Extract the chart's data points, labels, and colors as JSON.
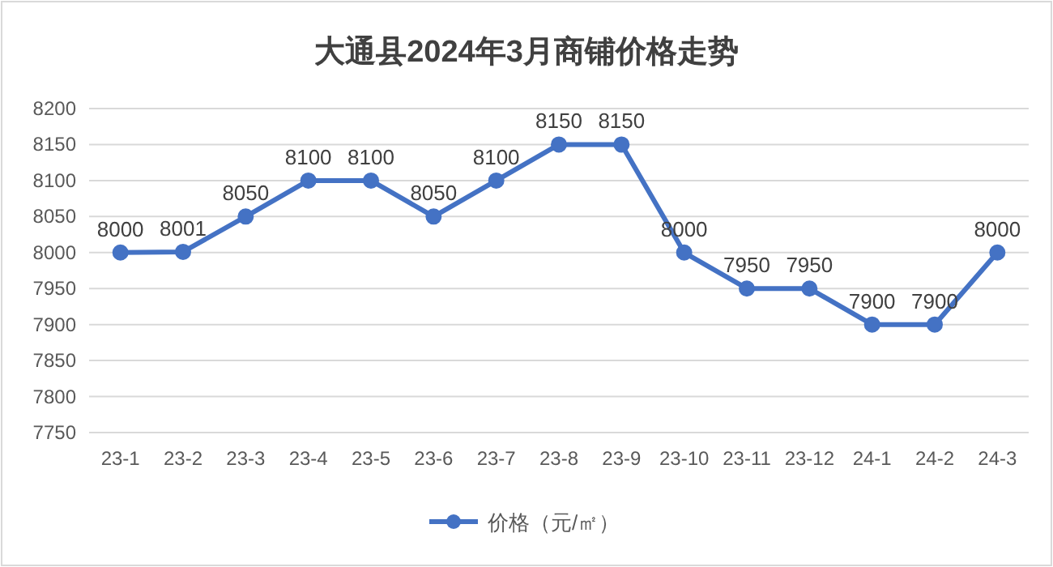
{
  "chart_data": {
    "type": "line",
    "title": "大通县2024年3月商铺价格走势",
    "categories": [
      "23-1",
      "23-2",
      "23-3",
      "23-4",
      "23-5",
      "23-6",
      "23-7",
      "23-8",
      "23-9",
      "23-10",
      "23-11",
      "23-12",
      "24-1",
      "24-2",
      "24-3"
    ],
    "series": [
      {
        "name": "价格（元/㎡）",
        "color": "#4472c4",
        "values": [
          8000,
          8001,
          8050,
          8100,
          8100,
          8050,
          8100,
          8150,
          8150,
          8000,
          7950,
          7950,
          7900,
          7900,
          8000
        ]
      }
    ],
    "ylim": [
      7750,
      8200
    ],
    "yticks": [
      7750,
      7800,
      7850,
      7900,
      7950,
      8000,
      8050,
      8100,
      8150,
      8200
    ],
    "grid": "y",
    "legend": "bottom",
    "marker": "circle",
    "line_style": "solid",
    "data_labels": true
  }
}
